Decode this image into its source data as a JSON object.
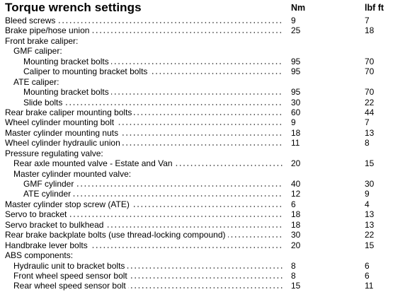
{
  "title": "Torque wrench settings",
  "columns": {
    "nm": "Nm",
    "lbf": "lbf ft"
  },
  "rows": [
    {
      "label": "Bleed screws",
      "indent": 0,
      "nm": "9",
      "lbf": "7"
    },
    {
      "label": "Brake pipe/hose union",
      "indent": 0,
      "nm": "25",
      "lbf": "18"
    },
    {
      "label": "Front brake caliper:",
      "indent": 0,
      "nm": "",
      "lbf": "",
      "heading": true
    },
    {
      "label": "GMF caliper:",
      "indent": 1,
      "nm": "",
      "lbf": "",
      "heading": true
    },
    {
      "label": "Mounting bracket bolts",
      "indent": 2,
      "nm": "95",
      "lbf": "70"
    },
    {
      "label": "Caliper to mounting bracket bolts",
      "indent": 2,
      "nm": "95",
      "lbf": "70"
    },
    {
      "label": "ATE caliper:",
      "indent": 1,
      "nm": "",
      "lbf": "",
      "heading": true
    },
    {
      "label": "Mounting bracket bolts",
      "indent": 2,
      "nm": "95",
      "lbf": "70"
    },
    {
      "label": "Slide bolts",
      "indent": 2,
      "nm": "30",
      "lbf": "22"
    },
    {
      "label": "Rear brake caliper mounting bolts",
      "indent": 0,
      "nm": "60",
      "lbf": "44"
    },
    {
      "label": "Wheel cylinder mounting bolt",
      "indent": 0,
      "nm": "9",
      "lbf": "7"
    },
    {
      "label": "Master cylinder mounting nuts",
      "indent": 0,
      "nm": "18",
      "lbf": "13"
    },
    {
      "label": "Wheel cylinder hydraulic union",
      "indent": 0,
      "nm": "11",
      "lbf": "8"
    },
    {
      "label": "Pressure regulating valve:",
      "indent": 0,
      "nm": "",
      "lbf": "",
      "heading": true
    },
    {
      "label": "Rear axle mounted valve - Estate and Van",
      "indent": 1,
      "nm": "20",
      "lbf": "15"
    },
    {
      "label": "Master cylinder mounted valve:",
      "indent": 1,
      "nm": "",
      "lbf": "",
      "heading": true
    },
    {
      "label": "GMF cylinder",
      "indent": 2,
      "nm": "40",
      "lbf": "30"
    },
    {
      "label": "ATE cylinder",
      "indent": 2,
      "nm": "12",
      "lbf": "9"
    },
    {
      "label": "Master cylinder stop screw (ATE)",
      "indent": 0,
      "nm": "6",
      "lbf": "4"
    },
    {
      "label": "Servo to bracket",
      "indent": 0,
      "nm": "18",
      "lbf": "13"
    },
    {
      "label": "Servo bracket to bulkhead",
      "indent": 0,
      "nm": "18",
      "lbf": "13"
    },
    {
      "label": "Rear brake backplate bolts (use thread-locking compound)",
      "indent": 0,
      "nm": "30",
      "lbf": "22"
    },
    {
      "label": "Handbrake lever bolts",
      "indent": 0,
      "nm": "20",
      "lbf": "15"
    },
    {
      "label": "ABS components:",
      "indent": 0,
      "nm": "",
      "lbf": "",
      "heading": true
    },
    {
      "label": "Hydraulic unit to bracket bolts",
      "indent": 1,
      "nm": "8",
      "lbf": "6"
    },
    {
      "label": "Front wheel speed sensor bolt",
      "indent": 1,
      "nm": "8",
      "lbf": "6"
    },
    {
      "label": "Rear wheel speed sensor bolt",
      "indent": 1,
      "nm": "15",
      "lbf": "11"
    }
  ]
}
